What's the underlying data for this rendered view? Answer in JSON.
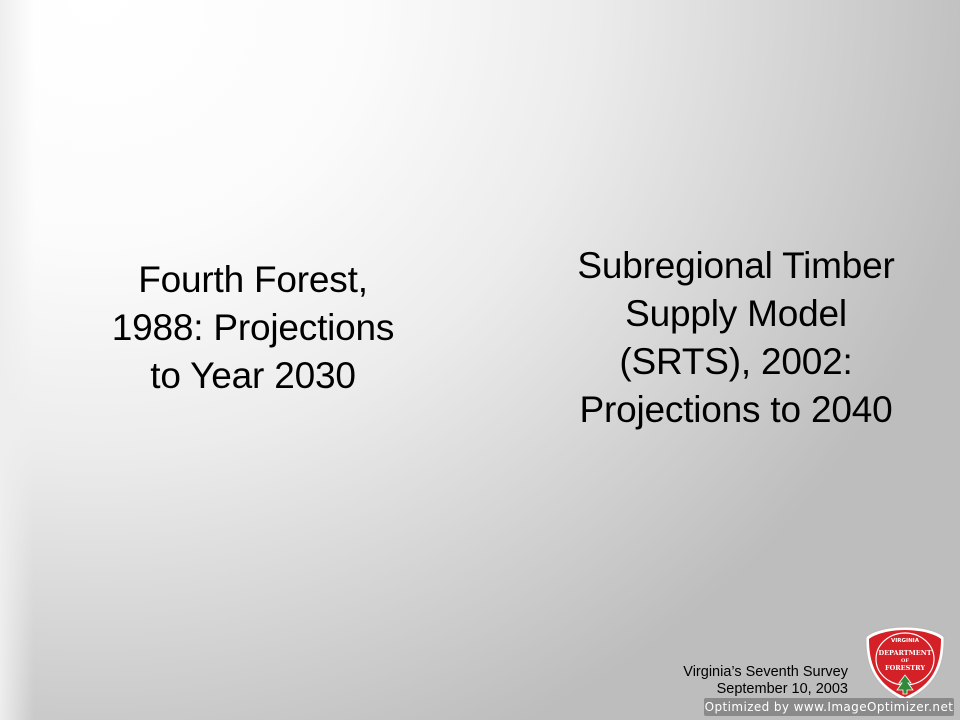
{
  "slide": {
    "left_column": {
      "lines": [
        "Fourth Forest,",
        "1988: Projections",
        "to Year 2030"
      ]
    },
    "right_column": {
      "lines": [
        "Subregional Timber",
        "Supply Model",
        "(SRTS), 2002:",
        "Projections to 2040"
      ]
    },
    "footer": {
      "line1": "Virginia’s Seventh Survey",
      "line2": "September 10, 2003"
    },
    "logo": {
      "icon": "virginia-department-of-forestry-seal",
      "text_top": "VIRGINIA",
      "text_mid1": "DEPARTMENT",
      "text_mid2": "OF",
      "text_bottom": "FORESTRY",
      "color": "#d42027"
    },
    "watermark": "Optimized by www.ImageOptimizer.net"
  }
}
